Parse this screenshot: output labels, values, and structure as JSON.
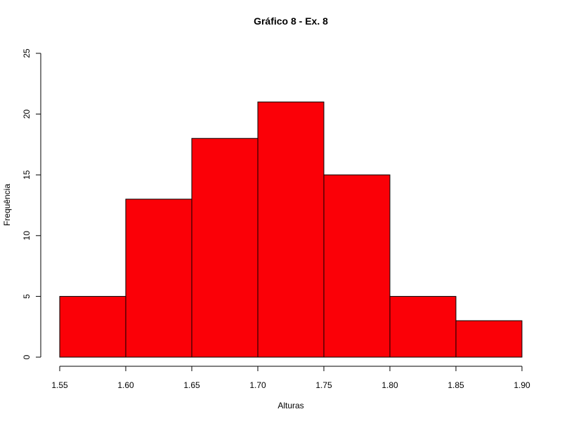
{
  "chart_data": {
    "type": "bar",
    "title": "Gráfico 8 - Ex. 8",
    "xlabel": "Alturas",
    "ylabel": "Frequência",
    "bins": [
      {
        "start": 1.55,
        "end": 1.6,
        "value": 5
      },
      {
        "start": 1.6,
        "end": 1.65,
        "value": 13
      },
      {
        "start": 1.65,
        "end": 1.7,
        "value": 18
      },
      {
        "start": 1.7,
        "end": 1.75,
        "value": 21
      },
      {
        "start": 1.75,
        "end": 1.8,
        "value": 15
      },
      {
        "start": 1.8,
        "end": 1.85,
        "value": 5
      },
      {
        "start": 1.85,
        "end": 1.9,
        "value": 3
      }
    ],
    "xlim": [
      1.55,
      1.9
    ],
    "ylim": [
      0,
      25
    ],
    "x_ticks": [
      "1.55",
      "1.60",
      "1.65",
      "1.70",
      "1.75",
      "1.80",
      "1.85",
      "1.90"
    ],
    "y_ticks": [
      "0",
      "5",
      "10",
      "15",
      "20",
      "25"
    ],
    "bar_color": "#fb0007",
    "grid": false,
    "legend": "none"
  }
}
